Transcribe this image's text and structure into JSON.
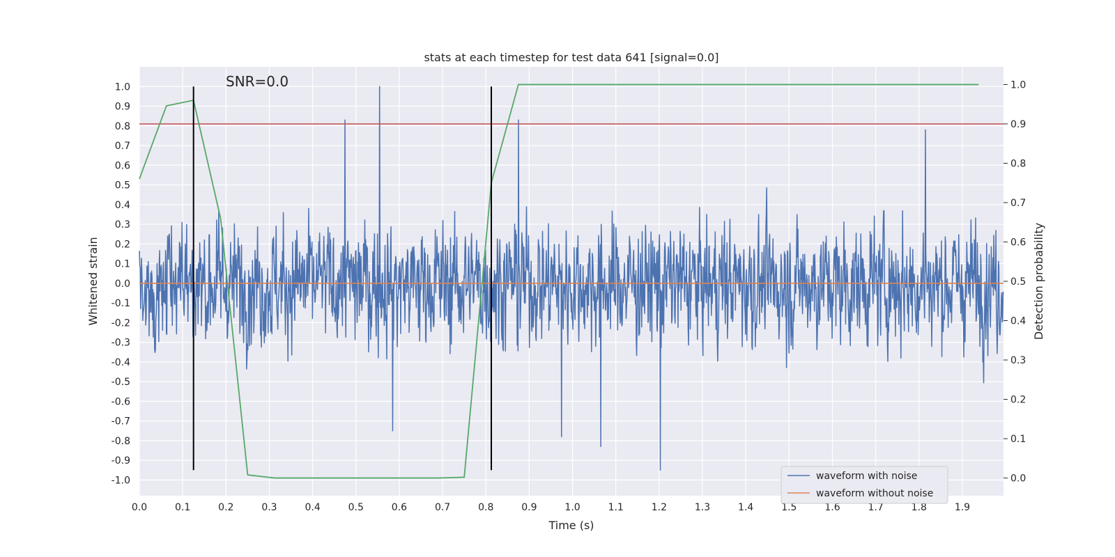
{
  "chart_data": {
    "type": "line",
    "title": "stats at each timestep for test data 641 [signal=0.0]",
    "annotation": "SNR=0.0",
    "xlabel": "Time (s)",
    "ylabel_left": "Whitened strain",
    "ylabel_right": "Detection probability",
    "xlim": [
      0.0,
      1.995
    ],
    "ylim_left": [
      -1.08,
      1.1
    ],
    "ylim_right": [
      -0.045,
      1.045
    ],
    "x_ticks": [
      "0.0",
      "0.1",
      "0.2",
      "0.3",
      "0.4",
      "0.5",
      "0.6",
      "0.7",
      "0.8",
      "0.9",
      "1.0",
      "1.1",
      "1.2",
      "1.3",
      "1.4",
      "1.5",
      "1.6",
      "1.7",
      "1.8",
      "1.9"
    ],
    "y_left_ticks": [
      "1.0",
      "0.9",
      "0.8",
      "0.7",
      "0.6",
      "0.5",
      "0.4",
      "0.3",
      "0.2",
      "0.1",
      "0.0",
      "-0.1",
      "-0.2",
      "-0.3",
      "-0.4",
      "-0.5",
      "-0.6",
      "-0.7",
      "-0.8",
      "-0.9",
      "-1.0"
    ],
    "y_right_ticks": [
      "1.0",
      "0.9",
      "0.8",
      "0.7",
      "0.6",
      "0.5",
      "0.4",
      "0.3",
      "0.2",
      "0.1",
      "0.0"
    ],
    "grid": true,
    "legend_position": "lower-right",
    "series": [
      {
        "name": "waveform with noise",
        "axis": "left",
        "color": "#4c72b0",
        "style": "dense noisy signal, peak 1.0 near t=0.555, min -0.95 near t=1.203",
        "peaks": [
          {
            "x": 0.555,
            "y": 1.0
          },
          {
            "x": 0.475,
            "y": 0.83
          },
          {
            "x": 0.875,
            "y": 0.83
          },
          {
            "x": 1.815,
            "y": 0.78
          },
          {
            "x": 1.203,
            "y": -0.95
          },
          {
            "x": 1.065,
            "y": -0.83
          },
          {
            "x": 0.585,
            "y": -0.75
          },
          {
            "x": 0.975,
            "y": -0.78
          }
        ]
      },
      {
        "name": "waveform without noise",
        "axis": "left",
        "color": "#dd8452",
        "x": [
          0.0,
          1.995
        ],
        "y": [
          0.0,
          0.0
        ]
      },
      {
        "name": "",
        "axis": "right",
        "color": "#55a868",
        "x": [
          0.0,
          0.0625,
          0.125,
          0.1875,
          0.25,
          0.3125,
          0.375,
          0.4375,
          0.5,
          0.5625,
          0.625,
          0.6875,
          0.75,
          0.8125,
          0.875,
          0.9375,
          1.0,
          1.0625,
          1.125,
          1.1875,
          1.25,
          1.3125,
          1.375,
          1.4375,
          1.5,
          1.5625,
          1.625,
          1.6875,
          1.75,
          1.8125,
          1.875,
          1.9375
        ],
        "y": [
          0.76,
          0.946,
          0.96,
          0.66,
          0.008,
          0.0,
          0.0,
          0.0,
          0.0,
          0.0,
          0.0,
          0.0,
          0.002,
          0.75,
          1.0,
          1.0,
          1.0,
          1.0,
          1.0,
          1.0,
          1.0,
          1.0,
          1.0,
          1.0,
          1.0,
          1.0,
          1.0,
          1.0,
          1.0,
          1.0,
          1.0,
          1.0
        ]
      }
    ],
    "threshold_line": {
      "axis": "right",
      "y": 0.9,
      "color": "#c44e52"
    },
    "vertical_markers": [
      {
        "x": 0.125,
        "color": "#000000"
      },
      {
        "x": 0.8125,
        "color": "#000000"
      }
    ]
  }
}
